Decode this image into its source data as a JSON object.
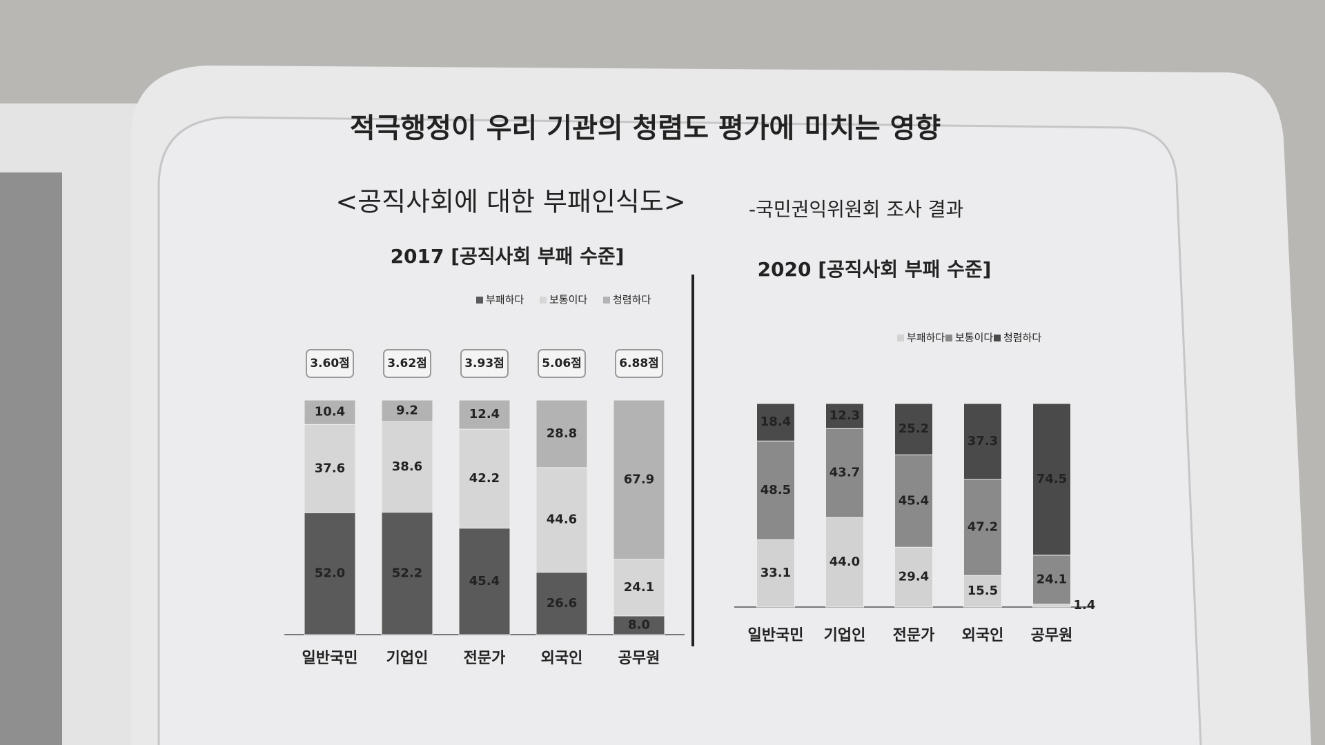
{
  "title": "적극행정이 우리 기관의 청렴도 평가에 미치는 영향",
  "subtitle": "<공직사회에 대한 부패인식도>",
  "source": "-국민권익위원회 조사 결과",
  "chart_data": [
    {
      "type": "stacked_bar",
      "title": "2017 [공직사회 부패 수준]",
      "categories": [
        "일반국민",
        "기업인",
        "전문가",
        "외국인",
        "공무원"
      ],
      "annotations": [
        "3.60점",
        "3.62점",
        "3.93점",
        "5.06점",
        "6.88점"
      ],
      "series": [
        {
          "name": "부패하다",
          "color": "#5a5a5a",
          "values": [
            52.0,
            52.2,
            45.4,
            26.6,
            8.0
          ],
          "value_labels": [
            "52.0",
            "52.2",
            "45.4",
            "26.6",
            "8.0"
          ]
        },
        {
          "name": "보통이다",
          "color": "#d6d6d6",
          "values": [
            37.6,
            38.6,
            42.2,
            44.6,
            24.1
          ],
          "value_labels": [
            "37.6",
            "38.6",
            "42.2",
            "44.6",
            "24.1"
          ]
        },
        {
          "name": "청렴하다",
          "color": "#b3b3b3",
          "values": [
            10.4,
            9.2,
            12.4,
            28.8,
            67.9
          ],
          "value_labels": [
            "10.4",
            "9.2",
            "12.4",
            "28.8",
            "67.9"
          ]
        }
      ]
    },
    {
      "type": "stacked_bar",
      "title": "2020 [공직사회 부패 수준]",
      "categories": [
        "일반국민",
        "기업인",
        "전문가",
        "외국인",
        "공무원"
      ],
      "series": [
        {
          "name": "부패하다",
          "color": "#d2d2d2",
          "values": [
            33.1,
            44.0,
            29.4,
            15.5,
            1.4
          ],
          "value_labels": [
            "33.1",
            "44.0",
            "29.4",
            "15.5",
            "1.4"
          ]
        },
        {
          "name": "보통이다",
          "color": "#8a8a8a",
          "values": [
            48.5,
            43.7,
            45.4,
            47.2,
            24.1
          ],
          "value_labels": [
            "48.5",
            "43.7",
            "45.4",
            "47.2",
            "24.1"
          ]
        },
        {
          "name": "청렴하다",
          "color": "#4a4a4a",
          "values": [
            18.4,
            12.3,
            25.2,
            37.3,
            74.5
          ],
          "value_labels": [
            "18.4",
            "12.3",
            "25.2",
            "37.3",
            "74.5"
          ]
        }
      ]
    }
  ]
}
